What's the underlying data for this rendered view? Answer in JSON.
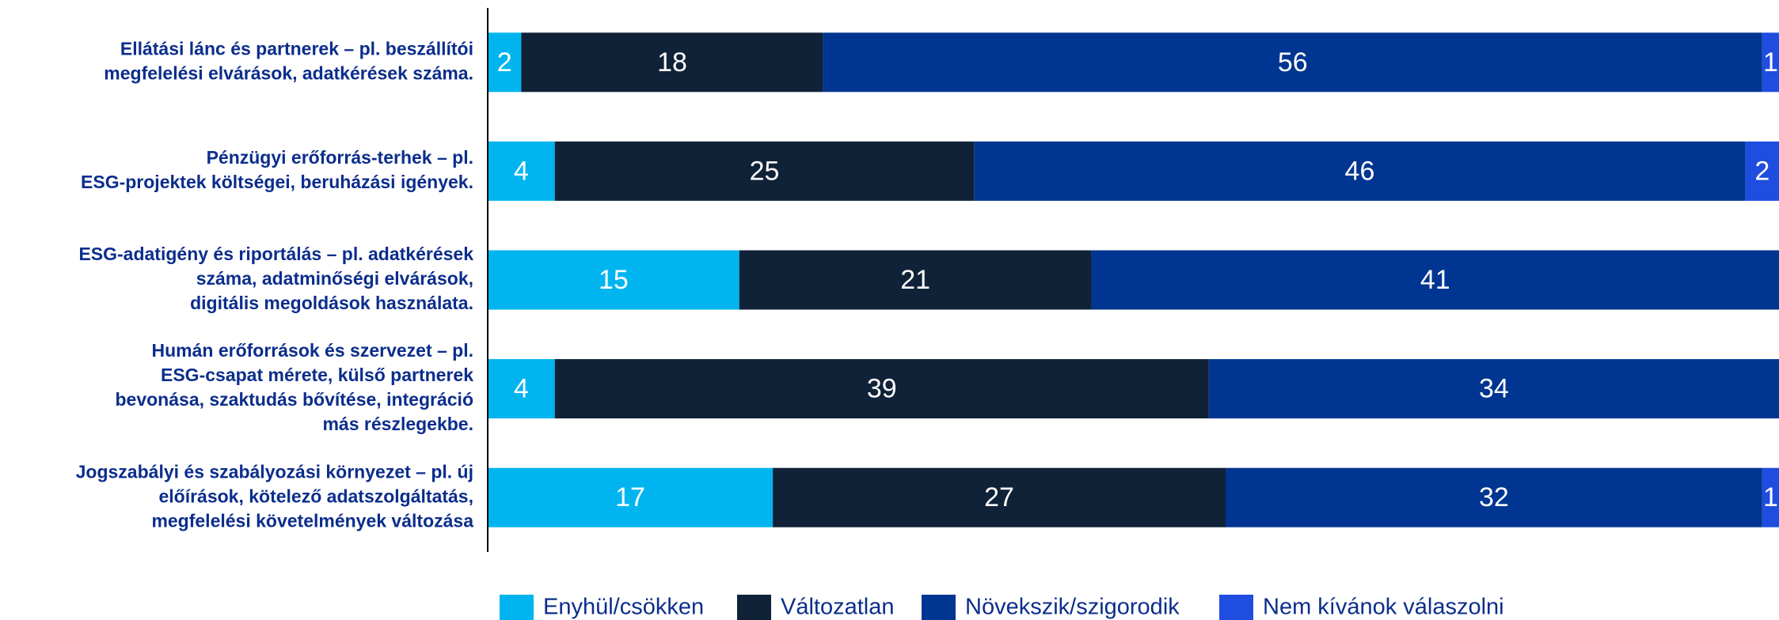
{
  "chart_data": {
    "type": "stacked_barh",
    "categories": [
      [
        "Ellátási lánc és partnerek – pl. beszállítói",
        "megfelelési elvárások, adatkérések száma."
      ],
      [
        "Pénzügyi erőforrás-terhek – pl.",
        "ESG-projektek költségei, beruházási igények."
      ],
      [
        "ESG-adatigény és riportálás – pl. adatkérések",
        "száma, adatminőségi elvárások,",
        "digitális megoldások használata."
      ],
      [
        "Humán erőforrások és szervezet – pl.",
        "ESG-csapat mérete, külső partnerek",
        "bevonása, szaktudás bővítése, integráció",
        "más részlegekbe."
      ],
      [
        "Jogszabályi és szabályozási környezet – pl. új",
        "előírások, kötelező adatszolgáltatás,",
        "megfelelési követelmények változása"
      ]
    ],
    "series": [
      {
        "name": "Enyhül/csökken",
        "color": "#00b5ef",
        "values": [
          2,
          4,
          15,
          4,
          17
        ]
      },
      {
        "name": "Változatlan",
        "color": "#0f2238",
        "values": [
          18,
          25,
          21,
          39,
          27
        ]
      },
      {
        "name": "Növekszik/szigorodik",
        "color": "#003591",
        "values": [
          56,
          46,
          41,
          34,
          32
        ]
      },
      {
        "name": "Nem kívánok válaszolni",
        "color": "#1f4de0",
        "values": [
          1,
          2,
          0,
          0,
          1
        ]
      }
    ],
    "xlim": [
      0,
      77
    ],
    "legend": "bottom"
  }
}
